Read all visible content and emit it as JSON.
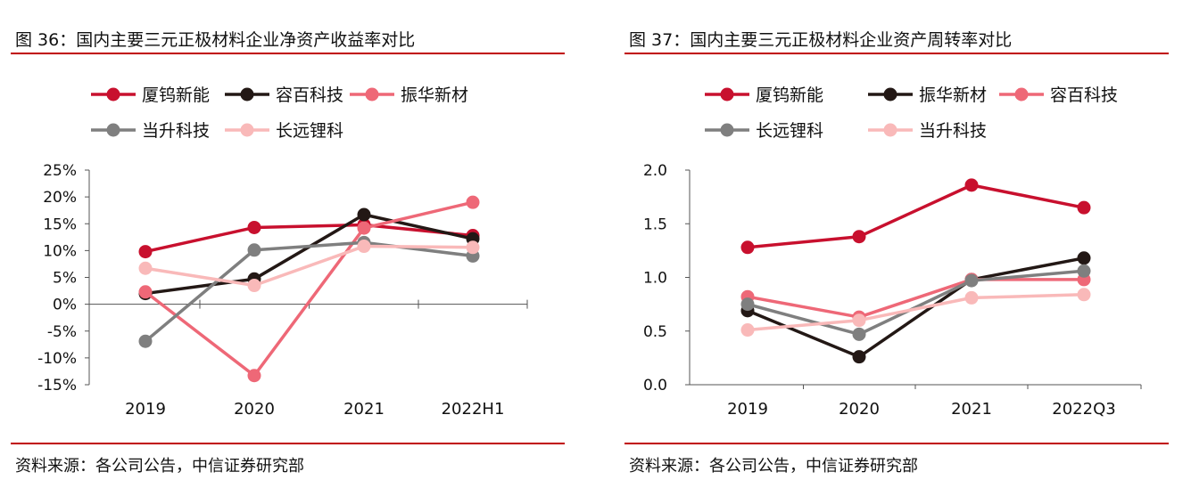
{
  "figures": [
    {
      "title": "图 36：国内主要三元正极材料企业净资产收益率对比",
      "source": "资料来源：各公司公告，中信证券研究部"
    },
    {
      "title": "图 37：国内主要三元正极材料企业资产周转率对比",
      "source": "资料来源：各公司公告，中信证券研究部"
    }
  ],
  "colors": {
    "rule": "#c00000"
  },
  "chart_data": [
    {
      "type": "line",
      "categories": [
        "2019",
        "2020",
        "2021",
        "2022H1"
      ],
      "ylim": [
        -15,
        25
      ],
      "yticks": [
        25,
        20,
        15,
        10,
        5,
        0,
        -5,
        -10,
        -15
      ],
      "ytick_labels": [
        "25%",
        "20%",
        "15%",
        "10%",
        "5%",
        "0%",
        "-5%",
        "-10%",
        "-15%"
      ],
      "grid": false,
      "legend_position": "top",
      "series": [
        {
          "name": "厦钨新能",
          "color": "#c8102e",
          "values": [
            9.8,
            14.3,
            14.8,
            12.8
          ]
        },
        {
          "name": "容百科技",
          "color": "#231815",
          "values": [
            2.0,
            4.7,
            16.7,
            12.2
          ]
        },
        {
          "name": "振华新材",
          "color": "#ee6877",
          "values": [
            2.3,
            -13.3,
            14.2,
            19.0
          ]
        },
        {
          "name": "当升科技",
          "color": "#7f7f7f",
          "values": [
            -6.9,
            10.1,
            11.5,
            9.0
          ]
        },
        {
          "name": "长远锂科",
          "color": "#f9b9b9",
          "values": [
            6.7,
            3.5,
            10.8,
            10.6
          ]
        }
      ]
    },
    {
      "type": "line",
      "categories": [
        "2019",
        "2020",
        "2021",
        "2022Q3"
      ],
      "ylim": [
        0,
        2
      ],
      "yticks": [
        2.0,
        1.5,
        1.0,
        0.5,
        0.0
      ],
      "ytick_labels": [
        "2.0",
        "1.5",
        "1.0",
        "0.5",
        "0.0"
      ],
      "grid": false,
      "legend_position": "top",
      "series": [
        {
          "name": "厦钨新能",
          "color": "#c8102e",
          "values": [
            1.28,
            1.38,
            1.86,
            1.65
          ]
        },
        {
          "name": "振华新材",
          "color": "#231815",
          "values": [
            0.69,
            0.26,
            0.98,
            1.18
          ]
        },
        {
          "name": "容百科技",
          "color": "#ee6877",
          "values": [
            0.82,
            0.63,
            0.98,
            0.98
          ]
        },
        {
          "name": "长远锂科",
          "color": "#7f7f7f",
          "values": [
            0.75,
            0.47,
            0.97,
            1.06
          ]
        },
        {
          "name": "当升科技",
          "color": "#f9b9b9",
          "values": [
            0.51,
            0.6,
            0.81,
            0.84
          ]
        }
      ]
    }
  ]
}
